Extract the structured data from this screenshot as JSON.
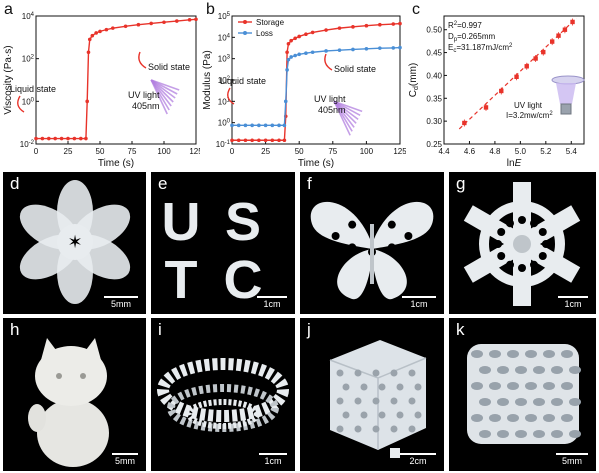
{
  "panels": {
    "a": {
      "label": "a"
    },
    "b": {
      "label": "b"
    },
    "c": {
      "label": "c"
    }
  },
  "chart_data": [
    {
      "panel": "a",
      "type": "line",
      "xlabel": "Time (s)",
      "ylabel": "Viscosity (Pa·s)",
      "xlim": [
        0,
        125
      ],
      "ylim_log10": [
        -2,
        4
      ],
      "xticks": [
        "0",
        "25",
        "50",
        "75",
        "100",
        "125"
      ],
      "yticks": [
        "10-2",
        "100",
        "102",
        "104"
      ],
      "color": "#e8332a",
      "series": [
        {
          "x": [
            0,
            5,
            10,
            15,
            20,
            25,
            30,
            35,
            39,
            40,
            41,
            42,
            44,
            47,
            50,
            55,
            60,
            70,
            80,
            90,
            100,
            110,
            120,
            125
          ],
          "y": [
            0.018,
            0.018,
            0.018,
            0.018,
            0.018,
            0.018,
            0.018,
            0.018,
            0.018,
            1.0,
            200,
            800,
            1200,
            1600,
            1900,
            2300,
            2700,
            3300,
            3900,
            4500,
            5100,
            5800,
            6600,
            7000
          ]
        }
      ],
      "annotations": [
        "Liquid state",
        "Solid state",
        "UV light",
        "405nm"
      ]
    },
    {
      "panel": "b",
      "type": "line",
      "xlabel": "Time (s)",
      "ylabel": "Modulus (Pa)",
      "xlim": [
        0,
        125
      ],
      "ylim_log10": [
        -1,
        5
      ],
      "xticks": [
        "0",
        "25",
        "50",
        "75",
        "100",
        "125"
      ],
      "yticks": [
        "10-1",
        "100",
        "101",
        "102",
        "103",
        "104",
        "105"
      ],
      "series": [
        {
          "name": "Storage",
          "color": "#e8332a",
          "x": [
            0,
            5,
            10,
            15,
            20,
            25,
            30,
            35,
            39,
            40,
            41,
            42,
            44,
            47,
            50,
            55,
            60,
            70,
            80,
            90,
            100,
            110,
            120,
            125
          ],
          "y": [
            0.15,
            0.15,
            0.15,
            0.15,
            0.15,
            0.15,
            0.15,
            0.15,
            0.15,
            2,
            2000,
            5000,
            7000,
            9000,
            11000,
            14000,
            17000,
            22000,
            27000,
            31000,
            35000,
            39000,
            42000,
            44000
          ]
        },
        {
          "name": "Loss",
          "color": "#4a8fd6",
          "x": [
            0,
            5,
            10,
            15,
            20,
            25,
            30,
            35,
            39,
            40,
            41,
            42,
            44,
            47,
            50,
            55,
            60,
            70,
            80,
            90,
            100,
            110,
            120,
            125
          ],
          "y": [
            0.75,
            0.75,
            0.75,
            0.75,
            0.75,
            0.75,
            0.75,
            0.75,
            0.75,
            10,
            300,
            900,
            1200,
            1400,
            1600,
            1800,
            2000,
            2300,
            2500,
            2700,
            2900,
            3100,
            3200,
            3300
          ]
        }
      ],
      "annotations": [
        "Liquid state",
        "Solid state",
        "UV light",
        "405nm"
      ]
    },
    {
      "panel": "c",
      "type": "scatter",
      "xlabel": "ln",
      "xlabel_italic": "E",
      "ylabel": "Cd(mm)",
      "xlim": [
        4.4,
        5.5
      ],
      "ylim": [
        0.25,
        0.53
      ],
      "xticks": [
        "4.4",
        "4.6",
        "4.8",
        "5.0",
        "5.2",
        "5.4"
      ],
      "yticks": [
        "0.25",
        "0.30",
        "0.35",
        "0.40",
        "0.45",
        "0.50"
      ],
      "color": "#e8332a",
      "x": [
        4.56,
        4.73,
        4.85,
        4.97,
        5.05,
        5.12,
        5.18,
        5.25,
        5.3,
        5.35,
        5.41
      ],
      "y": [
        0.296,
        0.33,
        0.366,
        0.397,
        0.42,
        0.437,
        0.451,
        0.474,
        0.487,
        0.5,
        0.517
      ],
      "fit_line": {
        "x": [
          4.52,
          5.44
        ],
        "y": [
          0.283,
          0.525
        ]
      },
      "fit_text": [
        "R2=0.997",
        "Dp=0.265mm",
        "Ec=31.187mJ/cm2"
      ],
      "annotations": [
        "UV light",
        "I=3.2mw/cm2"
      ]
    }
  ],
  "photos": [
    {
      "label": "d",
      "scale": "5mm",
      "object": "six-petal flower"
    },
    {
      "label": "e",
      "scale": "1cm",
      "object": "letters",
      "letters": [
        "U",
        "S",
        "T",
        "C"
      ]
    },
    {
      "label": "f",
      "scale": "1cm",
      "object": "butterfly"
    },
    {
      "label": "g",
      "scale": "1cm",
      "object": "snowflake lattice"
    },
    {
      "label": "h",
      "scale": "5mm",
      "object": "lucky cat"
    },
    {
      "label": "i",
      "scale": "1cm",
      "object": "colosseum ring"
    },
    {
      "label": "j",
      "scale": "2cm",
      "object": "gyroid cube"
    },
    {
      "label": "k",
      "scale": "5mm",
      "object": "porous block"
    }
  ]
}
